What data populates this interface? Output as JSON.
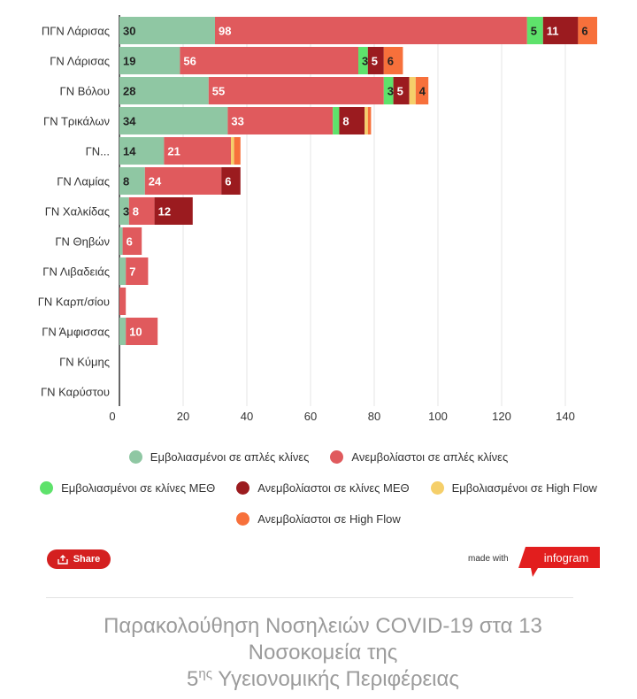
{
  "chart_data": {
    "type": "bar",
    "orientation": "horizontal",
    "stacked": true,
    "categories": [
      "ΠΓΝ Λάρισας",
      "ΓΝ Λάρισας",
      "ΓΝ Βόλου",
      "ΓΝ Τρικάλων",
      "ΓΝ...",
      "ΓΝ Λαμίας",
      "ΓΝ Χαλκίδας",
      "ΓΝ Θηβών",
      "ΓΝ Λιβαδειάς",
      "ΓΝ Καρπ/σίου",
      "ΓΝ Άμφισσας",
      "ΓΝ Κύμης",
      "ΓΝ Καρύστου"
    ],
    "series": [
      {
        "name": "Εμβολιασμένοι σε απλές κλίνες",
        "color": "#8fc7a3",
        "values": [
          30,
          19,
          28,
          34,
          14,
          8,
          3,
          1,
          2,
          0,
          2,
          0,
          0
        ]
      },
      {
        "name": "Ανεμβολίαστοι σε απλές κλίνες",
        "color": "#e05a5d",
        "values": [
          98,
          56,
          55,
          33,
          21,
          24,
          8,
          6,
          7,
          2,
          10,
          0,
          0
        ]
      },
      {
        "name": "Εμβολιασμένοι σε κλίνες ΜΕΘ",
        "color": "#5ee26b",
        "values": [
          5,
          3,
          3,
          2,
          0,
          0,
          0,
          0,
          0,
          0,
          0,
          0,
          0
        ]
      },
      {
        "name": "Ανεμβολίαστοι σε κλίνες ΜΕΘ",
        "color": "#9b1b1f",
        "values": [
          11,
          5,
          5,
          8,
          0,
          6,
          12,
          0,
          0,
          0,
          0,
          0,
          0
        ]
      },
      {
        "name": "Εμβολιασμένοι σε High Flow",
        "color": "#f5cf6a",
        "values": [
          0,
          0,
          2,
          1,
          1,
          0,
          0,
          0,
          0,
          0,
          0,
          0,
          0
        ]
      },
      {
        "name": "Ανεμβολίαστοι σε High Flow",
        "color": "#f7703b",
        "values": [
          6,
          6,
          4,
          1,
          2,
          0,
          0,
          0,
          0,
          0,
          0,
          0,
          0
        ]
      }
    ],
    "value_labels_min": 3,
    "xlim": [
      0,
      155
    ],
    "xticks": [
      0,
      20,
      40,
      60,
      80,
      100,
      120,
      140
    ],
    "grid": true,
    "legend_position": "bottom"
  },
  "footer": {
    "share_label": "Share",
    "made_with": "made with",
    "brand": "infogram"
  },
  "caption": {
    "line1": "Παρακολούθηση Νοσηλειών COVID-19 στα 13",
    "line2": "Νοσοκομεία της",
    "line3_prefix": "5",
    "line3_sup": "ης",
    "line3_rest": " Υγειονομικής Περιφέρειας"
  }
}
